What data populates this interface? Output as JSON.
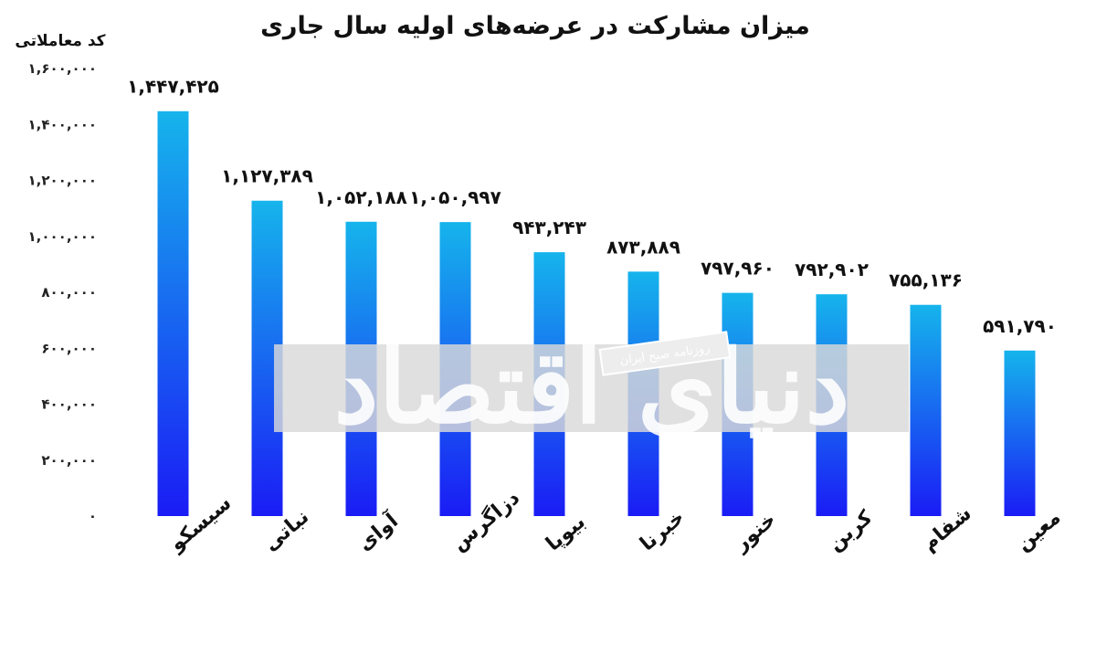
{
  "chart_data": {
    "type": "bar",
    "title": "میزان مشارکت در عرضه‌های اولیه سال جاری",
    "ylabel": "کد معاملاتی",
    "xlabel": "",
    "ylim": [
      0,
      1600000
    ],
    "yticks": [
      0,
      200000,
      400000,
      600000,
      800000,
      1000000,
      1200000,
      1400000,
      1600000
    ],
    "ytick_labels": [
      "۰",
      "۲۰۰,۰۰۰",
      "۴۰۰,۰۰۰",
      "۶۰۰,۰۰۰",
      "۸۰۰,۰۰۰",
      "۱,۰۰۰,۰۰۰",
      "۱,۲۰۰,۰۰۰",
      "۱,۴۰۰,۰۰۰",
      "۱,۶۰۰,۰۰۰"
    ],
    "categories": [
      "سیسکو",
      "نباتی",
      "آوای",
      "دزاگرس",
      "بیوپا",
      "خبرنا",
      "خنور",
      "کربن",
      "شفام",
      "معین"
    ],
    "values": [
      1447425,
      1127389,
      1052188,
      1050997,
      943243,
      873889,
      797960,
      792902,
      755136,
      591790
    ],
    "data_labels": [
      "۱,۴۴۷,۴۲۵",
      "۱,۱۲۷,۳۸۹",
      "۱,۰۵۲,۱۸۸",
      "۱,۰۵۰,۹۹۷",
      "۹۴۳,۲۴۳",
      "۸۷۳,۸۸۹",
      "۷۹۷,۹۶۰",
      "۷۹۲,۹۰۲",
      "۷۵۵,۱۳۶",
      "۵۹۱,۷۹۰"
    ],
    "grid": false,
    "legend": "none",
    "colors": {
      "bar_top": "#16b4ec",
      "bar_bottom": "#1a1cf5"
    }
  },
  "watermark": {
    "main_text": "دنیای اقتصاد",
    "sub_text": "روزنامه صبح ایران"
  }
}
